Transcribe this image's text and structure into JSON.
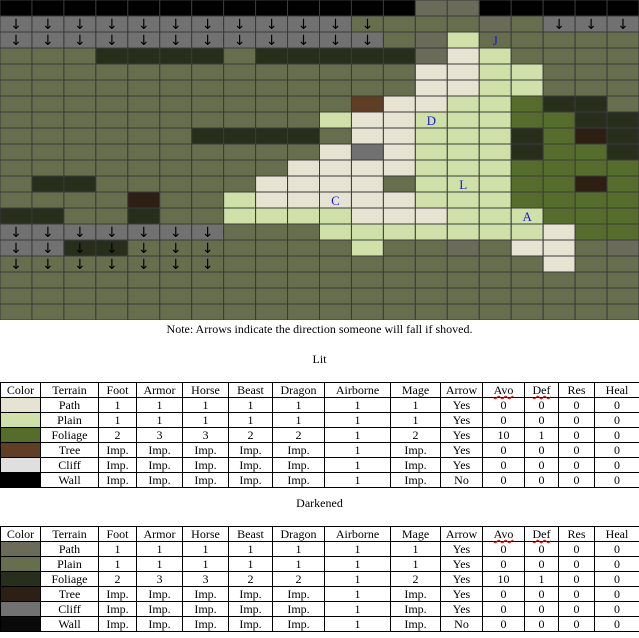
{
  "map": {
    "rows": 20,
    "cols": 20,
    "arrow_symbol": "↓",
    "colors": {
      "W": "#000000",
      "t": "#6b6b59",
      "c": "#717171",
      "a": "#666e4e",
      "f": "#5d6e44",
      "g": "#272f1c",
      "b": "#2e1f15",
      "P": "#e6e3d2",
      "L": "#cfe1a8",
      "F": "#556c2b",
      "T": "#603e26",
      "C": "#dfdfdf",
      "grid": "#3a3a3a"
    },
    "grid": [
      "WWWWWWWWWWWWWttWWWWW",
      "cccccccccccaaaataccc",
      "ccccccccccccatLaaaaa",
      "aaaggggagggggtPLaaaa",
      "aaaaaaaaaaaaaPPLLaaa",
      "aaaaaaaaaaaaaPPLLaaa",
      "aaaaaaaaaaaTPPLLFgga",
      "aaaaaaaaaaLPPLLLFFgg",
      "aaaaaaggggaPPLLLgFbg",
      "aaaaaaaaaaPcPLLLgFFg",
      "aaaaaaaaaPPPPLLLFFFF",
      "aggaaaaaPPPPaLLLFFbF",
      "aaaabaaLPPPPPLLLFFFF",
      "ggaagaaLLLLPPPLLLFFF",
      "cccccccaaaLLLLLLLPFF",
      "ccggaaaaaaaLaataPPat",
      "aaaaaaaaaaaaaaaaaPaa",
      "aaaaaaaaaaaaaaaaaaaa",
      "aaaaaaaaaaaaaaaaaaaa",
      "aaaaaaaaaaaaaaaaaaaa"
    ],
    "arrow_rows": [
      {
        "row": 0,
        "cols": [
          0,
          1,
          2,
          3,
          4,
          5,
          6,
          7,
          8,
          9,
          10,
          17,
          18,
          19
        ]
      },
      {
        "row": 1,
        "cols": [
          0,
          1,
          2,
          3,
          4,
          5,
          6,
          7,
          8,
          9,
          10,
          11,
          17,
          18,
          19
        ]
      },
      {
        "row": 2,
        "cols": [
          0,
          1,
          2,
          3,
          4,
          5,
          6,
          7,
          8,
          9,
          10,
          11
        ]
      },
      {
        "row": 14,
        "cols": [
          0,
          1,
          2,
          3,
          4,
          5,
          6
        ]
      },
      {
        "row": 15,
        "cols": [
          0,
          1,
          2,
          3,
          4,
          5,
          6
        ]
      },
      {
        "row": 16,
        "cols": [
          0,
          1,
          2,
          3,
          4,
          5,
          6
        ]
      }
    ],
    "labels": [
      {
        "text": "J",
        "row": 2,
        "col": 15
      },
      {
        "text": "D",
        "row": 7,
        "col": 13
      },
      {
        "text": "L",
        "row": 11,
        "col": 14
      },
      {
        "text": "C",
        "row": 12,
        "col": 10
      },
      {
        "text": "A",
        "row": 13,
        "col": 16
      }
    ]
  },
  "note": "Note: Arrows indicate the direction someone will fall if shoved.",
  "tables": [
    {
      "title": "Lit",
      "headers": [
        "Color",
        "Terrain",
        "Foot",
        "Armor",
        "Horse",
        "Beast",
        "Dragon",
        "Airborne",
        "Mage",
        "Arrow",
        "Avo",
        "Def",
        "Res",
        "Heal"
      ],
      "rows": [
        {
          "color": "#e6e3d2",
          "cells": [
            "Path",
            "1",
            "1",
            "1",
            "1",
            "1",
            "1",
            "1",
            "Yes",
            "0",
            "0",
            "0",
            "0"
          ]
        },
        {
          "color": "#cfe1a8",
          "cells": [
            "Plain",
            "1",
            "1",
            "1",
            "1",
            "1",
            "1",
            "1",
            "Yes",
            "0",
            "0",
            "0",
            "0"
          ]
        },
        {
          "color": "#556c2b",
          "cells": [
            "Foliage",
            "2",
            "3",
            "3",
            "2",
            "2",
            "1",
            "2",
            "Yes",
            "10",
            "1",
            "0",
            "0"
          ]
        },
        {
          "color": "#603e26",
          "cells": [
            "Tree",
            "Imp.",
            "Imp.",
            "Imp.",
            "Imp.",
            "Imp.",
            "1",
            "Imp.",
            "Yes",
            "0",
            "0",
            "0",
            "0"
          ]
        },
        {
          "color": "#dfdfdf",
          "cells": [
            "Cliff",
            "Imp.",
            "Imp.",
            "Imp.",
            "Imp.",
            "Imp.",
            "1",
            "Imp.",
            "Yes",
            "0",
            "0",
            "0",
            "0"
          ]
        },
        {
          "color": "#000000",
          "cells": [
            "Wall",
            "Imp.",
            "Imp.",
            "Imp.",
            "Imp.",
            "Imp.",
            "1",
            "Imp.",
            "No",
            "0",
            "0",
            "0",
            "0"
          ]
        }
      ]
    },
    {
      "title": "Darkened",
      "headers": [
        "Color",
        "Terrain",
        "Foot",
        "Armor",
        "Horse",
        "Beast",
        "Dragon",
        "Airborne",
        "Mage",
        "Arrow",
        "Avo",
        "Def",
        "Res",
        "Heal"
      ],
      "rows": [
        {
          "color": "#6b6b59",
          "cells": [
            "Path",
            "1",
            "1",
            "1",
            "1",
            "1",
            "1",
            "1",
            "Yes",
            "0",
            "0",
            "0",
            "0"
          ]
        },
        {
          "color": "#666e4e",
          "cells": [
            "Plain",
            "1",
            "1",
            "1",
            "1",
            "1",
            "1",
            "1",
            "Yes",
            "0",
            "0",
            "0",
            "0"
          ]
        },
        {
          "color": "#272f1c",
          "cells": [
            "Foliage",
            "2",
            "3",
            "3",
            "2",
            "2",
            "1",
            "2",
            "Yes",
            "10",
            "1",
            "0",
            "0"
          ]
        },
        {
          "color": "#2e1f15",
          "cells": [
            "Tree",
            "Imp.",
            "Imp.",
            "Imp.",
            "Imp.",
            "Imp.",
            "1",
            "Imp.",
            "Yes",
            "0",
            "0",
            "0",
            "0"
          ]
        },
        {
          "color": "#717171",
          "cells": [
            "Cliff",
            "Imp.",
            "Imp.",
            "Imp.",
            "Imp.",
            "Imp.",
            "1",
            "Imp.",
            "Yes",
            "0",
            "0",
            "0",
            "0"
          ]
        },
        {
          "color": "#0a0a0a",
          "cells": [
            "Wall",
            "Imp.",
            "Imp.",
            "Imp.",
            "Imp.",
            "Imp.",
            "1",
            "Imp.",
            "No",
            "0",
            "0",
            "0",
            "0"
          ]
        }
      ]
    }
  ]
}
